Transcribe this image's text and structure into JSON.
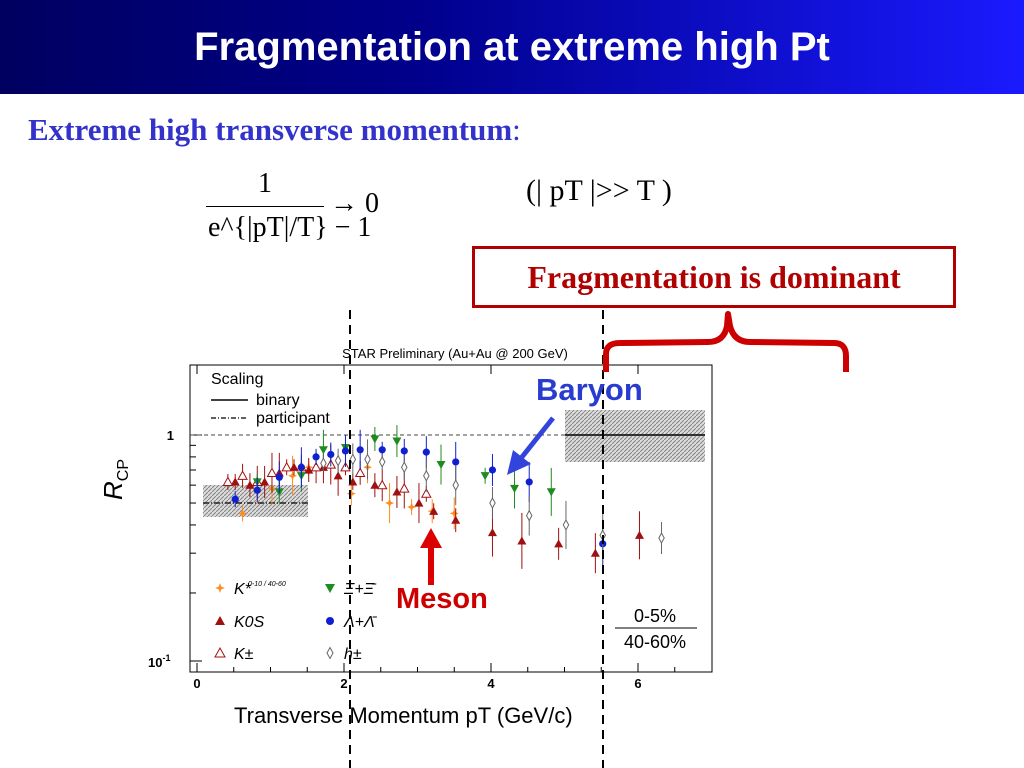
{
  "title": "Fragmentation at extreme high Pt",
  "heading": "Extreme high transverse momentum",
  "heading_colon": ":",
  "formula": {
    "numerator": "1",
    "denominator": "e^{|pT|/T} − 1",
    "limit": "→ 0",
    "condition": "(| pT |>> T )"
  },
  "callout": "Fragmentation is dominant",
  "chart_data": {
    "type": "scatter",
    "title": "STAR Preliminary (Au+Au @ 200 GeV)",
    "xlabel": "Transverse Momentum pT (GeV/c)",
    "ylabel": "RCP",
    "xlim": [
      0,
      7
    ],
    "ylim": [
      0.1,
      1.6
    ],
    "y_scale": "log",
    "x_ticks": [
      "0",
      "2",
      "4",
      "6"
    ],
    "y_ticks": [
      "1",
      "10-1"
    ],
    "scaling_legend": {
      "title": "Scaling",
      "items": [
        "binary",
        "participant"
      ]
    },
    "binary_scaling_level": 1.0,
    "participant_scaling_level": 0.5,
    "centrality_label_num": "0-5%",
    "centrality_label_den": "40-60%",
    "legend": [
      {
        "key": "kstar",
        "label": "K*",
        "sub": "0-10 / 40-60",
        "color": "#ff8c1a",
        "marker": "star"
      },
      {
        "key": "xi",
        "label": "Ξ+Ξ̄",
        "color": "#1e8c1e",
        "marker": "triangle-down"
      },
      {
        "key": "k0s",
        "label": "K0S",
        "color": "#a01010",
        "marker": "triangle-up"
      },
      {
        "key": "lambda",
        "label": "Λ+Λ̄",
        "color": "#1020d0",
        "marker": "circle"
      },
      {
        "key": "kpm",
        "label": "K±",
        "color": "#a01010",
        "marker": "triangle-open"
      },
      {
        "key": "hpm",
        "label": "h±",
        "color": "#666666",
        "marker": "diamond-open"
      }
    ],
    "series": [
      {
        "name": "K*",
        "key": "kstar",
        "points": [
          [
            0.62,
            0.45
          ],
          [
            0.82,
            0.56
          ],
          [
            1.02,
            0.58
          ],
          [
            1.3,
            0.66
          ],
          [
            1.52,
            0.72
          ],
          [
            2.1,
            0.55
          ],
          [
            2.32,
            0.72
          ],
          [
            2.62,
            0.5
          ],
          [
            2.92,
            0.48
          ],
          [
            3.2,
            0.46
          ],
          [
            3.5,
            0.45
          ]
        ]
      },
      {
        "name": "K0S",
        "key": "k0s",
        "points": [
          [
            0.52,
            0.62
          ],
          [
            0.72,
            0.6
          ],
          [
            0.92,
            0.62
          ],
          [
            1.12,
            0.68
          ],
          [
            1.32,
            0.72
          ],
          [
            1.52,
            0.7
          ],
          [
            1.72,
            0.72
          ],
          [
            1.92,
            0.66
          ],
          [
            2.12,
            0.62
          ],
          [
            2.42,
            0.6
          ],
          [
            2.72,
            0.56
          ],
          [
            3.02,
            0.5
          ],
          [
            3.22,
            0.46
          ],
          [
            3.52,
            0.42
          ],
          [
            4.02,
            0.37
          ],
          [
            4.42,
            0.34
          ],
          [
            4.92,
            0.33
          ],
          [
            5.42,
            0.3
          ],
          [
            6.02,
            0.36
          ]
        ]
      },
      {
        "name": "K±",
        "key": "kpm",
        "points": [
          [
            0.42,
            0.62
          ],
          [
            0.62,
            0.66
          ],
          [
            0.82,
            0.62
          ],
          [
            1.02,
            0.68
          ],
          [
            1.22,
            0.72
          ],
          [
            1.42,
            0.72
          ],
          [
            1.62,
            0.72
          ],
          [
            1.82,
            0.74
          ],
          [
            2.02,
            0.72
          ],
          [
            2.22,
            0.68
          ],
          [
            2.52,
            0.6
          ],
          [
            2.82,
            0.58
          ],
          [
            3.12,
            0.55
          ]
        ]
      },
      {
        "name": "Ξ+Ξ̄",
        "key": "xi",
        "points": [
          [
            0.82,
            0.62
          ],
          [
            1.12,
            0.56
          ],
          [
            1.42,
            0.66
          ],
          [
            1.72,
            0.86
          ],
          [
            2.02,
            0.88
          ],
          [
            2.42,
            0.96
          ],
          [
            2.72,
            0.94
          ],
          [
            3.32,
            0.74
          ],
          [
            3.92,
            0.66
          ],
          [
            4.32,
            0.58
          ],
          [
            4.82,
            0.56
          ]
        ]
      },
      {
        "name": "Λ+Λ̄",
        "key": "lambda",
        "points": [
          [
            0.52,
            0.52
          ],
          [
            0.82,
            0.57
          ],
          [
            1.12,
            0.65
          ],
          [
            1.42,
            0.72
          ],
          [
            1.62,
            0.8
          ],
          [
            1.82,
            0.82
          ],
          [
            2.02,
            0.85
          ],
          [
            2.22,
            0.86
          ],
          [
            2.52,
            0.86
          ],
          [
            2.82,
            0.85
          ],
          [
            3.12,
            0.84
          ],
          [
            3.52,
            0.76
          ],
          [
            4.02,
            0.7
          ],
          [
            4.52,
            0.62
          ],
          [
            5.52,
            0.33
          ]
        ]
      },
      {
        "name": "h±",
        "key": "hpm",
        "points": [
          [
            1.72,
            0.75
          ],
          [
            1.92,
            0.77
          ],
          [
            2.12,
            0.78
          ],
          [
            2.32,
            0.78
          ],
          [
            2.52,
            0.76
          ],
          [
            2.82,
            0.72
          ],
          [
            3.12,
            0.66
          ],
          [
            3.52,
            0.6
          ],
          [
            4.02,
            0.5
          ],
          [
            4.52,
            0.44
          ],
          [
            5.02,
            0.4
          ],
          [
            5.52,
            0.36
          ],
          [
            6.32,
            0.35
          ]
        ]
      }
    ]
  }
}
